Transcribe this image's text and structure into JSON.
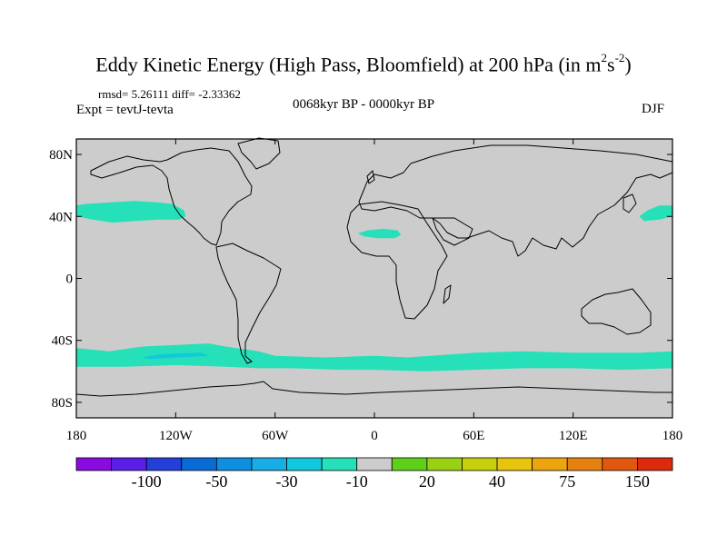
{
  "title": "Eddy Kinetic Energy (High Pass, Bloomfield) at 200 hPa (in m",
  "title_units": {
    "base1": "2",
    "s": "s",
    "exp2": "-2",
    "close": ")"
  },
  "stats": "rmsd= 5.26111 diff= -2.33362",
  "experiment": "Expt = tevtJ-tevta",
  "period": "0068kyr BP - 0000kyr BP",
  "season": "DJF",
  "map_data": {
    "type": "filled-contour-map",
    "lon_range": [
      -180,
      180
    ],
    "lat_range": [
      -90,
      90
    ],
    "lon_ticks": [
      "180",
      "120W",
      "60W",
      "0",
      "60E",
      "120E",
      "180"
    ],
    "lon_tick_values": [
      -180,
      -120,
      -60,
      0,
      60,
      120,
      180
    ],
    "lat_ticks": [
      "80N",
      "40N",
      "0",
      "40S",
      "80S"
    ],
    "lat_tick_values": [
      80,
      40,
      0,
      -40,
      -80
    ],
    "background_color": "#cccccc",
    "anomaly_color": "#25e0b8",
    "anomaly_regions": [
      {
        "name": "North Pacific",
        "value_range": "-20 to -10",
        "points": [
          [
            -180,
            40
          ],
          [
            -170,
            38
          ],
          [
            -158,
            36
          ],
          [
            -145,
            37
          ],
          [
            -130,
            38
          ],
          [
            -118,
            38
          ],
          [
            -114,
            40
          ],
          [
            -115,
            44
          ],
          [
            -122,
            48
          ],
          [
            -130,
            49
          ],
          [
            -145,
            50
          ],
          [
            -160,
            49
          ],
          [
            -175,
            48
          ],
          [
            -180,
            47
          ]
        ]
      },
      {
        "name": "Western North Pacific",
        "value_range": "-20 to -10",
        "points": [
          [
            180,
            47
          ],
          [
            172,
            47
          ],
          [
            165,
            44
          ],
          [
            160,
            40
          ],
          [
            163,
            37
          ],
          [
            172,
            38
          ],
          [
            180,
            40
          ]
        ]
      },
      {
        "name": "North Africa",
        "value_range": "-20 to -10",
        "points": [
          [
            -10,
            29
          ],
          [
            -6,
            27
          ],
          [
            2,
            26
          ],
          [
            12,
            26
          ],
          [
            16,
            28
          ],
          [
            14,
            31
          ],
          [
            5,
            32
          ],
          [
            -4,
            31
          ]
        ]
      },
      {
        "name": "Southern Hemisphere storm track",
        "value_range": "-20 to -10",
        "points": [
          [
            -180,
            -45
          ],
          [
            -160,
            -47
          ],
          [
            -140,
            -44
          ],
          [
            -100,
            -42
          ],
          [
            -90,
            -44
          ],
          [
            -70,
            -47
          ],
          [
            -60,
            -50
          ],
          [
            -30,
            -51
          ],
          [
            0,
            -50
          ],
          [
            20,
            -51
          ],
          [
            60,
            -48
          ],
          [
            90,
            -47
          ],
          [
            120,
            -48
          ],
          [
            160,
            -48
          ],
          [
            180,
            -47
          ],
          [
            180,
            -58
          ],
          [
            150,
            -59
          ],
          [
            120,
            -58
          ],
          [
            90,
            -58
          ],
          [
            60,
            -59
          ],
          [
            30,
            -60
          ],
          [
            0,
            -59
          ],
          [
            -20,
            -59
          ],
          [
            -50,
            -58
          ],
          [
            -70,
            -58
          ],
          [
            -90,
            -57
          ],
          [
            -120,
            -56
          ],
          [
            -150,
            -57
          ],
          [
            -180,
            -57
          ]
        ]
      },
      {
        "name": "South Pacific core",
        "value_range": "-30 to -20",
        "points": [
          [
            -140,
            -51
          ],
          [
            -130,
            -49
          ],
          [
            -105,
            -48
          ],
          [
            -100,
            -50
          ],
          [
            -120,
            -51
          ],
          [
            -135,
            -52
          ]
        ]
      }
    ]
  },
  "colorbar": {
    "colors": [
      "#8a0be0",
      "#5a1ee6",
      "#2440d8",
      "#0a6ad6",
      "#0e8fdf",
      "#18aee5",
      "#11c8dd",
      "#25e0b8",
      "#cccccc",
      "#5fd01a",
      "#9ad014",
      "#c6d00c",
      "#e8c40e",
      "#eca40f",
      "#e68010",
      "#e05810",
      "#dc2a0e"
    ],
    "labels": [
      "-100",
      "-50",
      "-30",
      "-10",
      "20",
      "40",
      "75",
      "150"
    ],
    "label_boundaries": [
      2,
      4,
      6,
      8,
      10,
      12,
      14,
      16
    ]
  }
}
